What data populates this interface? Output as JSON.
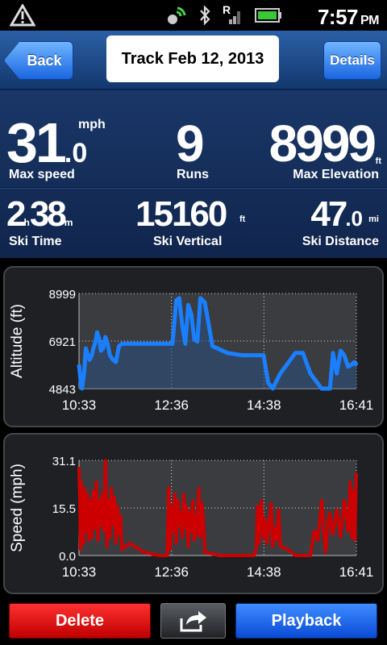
{
  "status_bar": {
    "time": "7:57",
    "ampm": "PM",
    "network_letter": "R"
  },
  "nav": {
    "back_label": "Back",
    "title": "Track Feb 12, 2013",
    "details_label": "Details"
  },
  "stats": {
    "max_speed": {
      "whole": "31",
      "decimal": ".0",
      "unit": "mph",
      "label": "Max speed"
    },
    "runs": {
      "value": "9",
      "label": "Runs"
    },
    "max_elevation": {
      "value": "8999",
      "unit": "ft",
      "label": "Max Elevation"
    },
    "ski_time": {
      "hours": "2",
      "hours_unit": "h",
      "minutes": "38",
      "minutes_unit": "m",
      "label": "Ski Time"
    },
    "ski_vertical": {
      "value": "15160",
      "unit": "ft",
      "label": "Ski Vertical"
    },
    "ski_distance": {
      "whole": "47",
      "decimal": ".0",
      "unit": "mi",
      "label": "Ski Distance"
    }
  },
  "chart_data": [
    {
      "type": "area",
      "ylabel": "Altitude (ft)",
      "xticks": [
        "10:33",
        "12:36",
        "14:38",
        "16:41"
      ],
      "yticks": [
        "8999",
        "6921",
        "4843"
      ],
      "ylim": [
        4843,
        8999
      ],
      "xlim_minutes": [
        633,
        1001
      ],
      "color": "#1a7fff",
      "x": [
        633,
        635,
        637,
        640,
        642,
        645,
        647,
        650,
        652,
        655,
        657,
        660,
        662,
        665,
        668,
        671,
        674,
        678,
        682,
        686,
        690,
        700,
        720,
        740,
        750,
        757,
        762,
        766,
        770,
        774,
        778,
        782,
        786,
        790,
        794,
        800,
        810,
        830,
        850,
        860,
        866,
        872,
        878,
        884,
        890,
        900,
        920,
        930,
        940,
        955,
        962,
        966,
        970,
        975,
        980,
        985,
        990,
        995,
        998,
        1000,
        1001
      ],
      "y": [
        5900,
        5200,
        4843,
        5600,
        6600,
        6300,
        6100,
        6300,
        6600,
        6900,
        7300,
        7000,
        6500,
        6600,
        7100,
        6800,
        6300,
        6100,
        6000,
        6700,
        6800,
        6800,
        6800,
        6800,
        6800,
        6800,
        8700,
        8800,
        7600,
        6800,
        8500,
        8100,
        7000,
        6900,
        8800,
        8600,
        6700,
        6400,
        6300,
        6300,
        6300,
        6300,
        6300,
        5100,
        4843,
        5500,
        6400,
        6400,
        5500,
        4843,
        4843,
        4843,
        6400,
        5500,
        6500,
        6300,
        5800,
        5900,
        6000,
        5900,
        6000
      ]
    },
    {
      "type": "line",
      "ylabel": "Speed (mph)",
      "xticks": [
        "10:33",
        "12:36",
        "14:38",
        "16:41"
      ],
      "yticks": [
        "31.1",
        "15.5",
        "0.0"
      ],
      "ylim": [
        0,
        31.1
      ],
      "xlim_minutes": [
        633,
        1001
      ],
      "color": "#cc0000",
      "x": [
        633,
        634,
        635,
        636,
        637,
        638,
        639,
        640,
        642,
        644,
        646,
        648,
        650,
        652,
        654,
        656,
        658,
        660,
        662,
        664,
        666,
        668,
        670,
        672,
        674,
        676,
        678,
        680,
        682,
        684,
        686,
        688,
        690,
        700,
        720,
        740,
        750,
        752,
        754,
        756,
        758,
        760,
        762,
        764,
        766,
        768,
        770,
        772,
        774,
        776,
        778,
        780,
        782,
        784,
        786,
        788,
        790,
        792,
        794,
        796,
        798,
        800,
        820,
        840,
        850,
        855,
        860,
        865,
        868,
        870,
        872,
        875,
        878,
        880,
        882,
        885,
        888,
        890,
        892,
        895,
        898,
        900,
        910,
        920,
        930,
        940,
        945,
        950,
        955,
        960,
        965,
        970,
        975,
        980,
        985,
        990,
        993,
        995,
        997,
        999,
        1001
      ],
      "y": [
        29,
        20,
        2,
        24,
        10,
        19,
        4,
        22,
        8,
        20,
        5,
        18,
        6,
        21,
        9,
        24,
        5,
        18,
        10,
        20,
        8,
        31,
        3,
        18,
        6,
        22,
        10,
        19,
        4,
        16,
        7,
        13,
        2,
        4,
        1,
        0,
        0,
        22,
        2,
        16,
        8,
        20,
        4,
        18,
        10,
        14,
        6,
        20,
        9,
        16,
        3,
        14,
        8,
        18,
        5,
        13,
        7,
        22,
        6,
        17,
        12,
        1,
        0,
        0,
        0,
        0,
        0,
        0,
        2,
        16,
        4,
        18,
        6,
        12,
        4,
        10,
        17,
        3,
        9,
        5,
        15,
        3,
        2,
        0,
        0,
        0,
        8,
        5,
        18,
        1,
        14,
        7,
        15,
        6,
        18,
        8,
        24,
        6,
        21,
        5,
        27
      ]
    }
  ],
  "bottom": {
    "delete_label": "Delete",
    "playback_label": "Playback"
  }
}
